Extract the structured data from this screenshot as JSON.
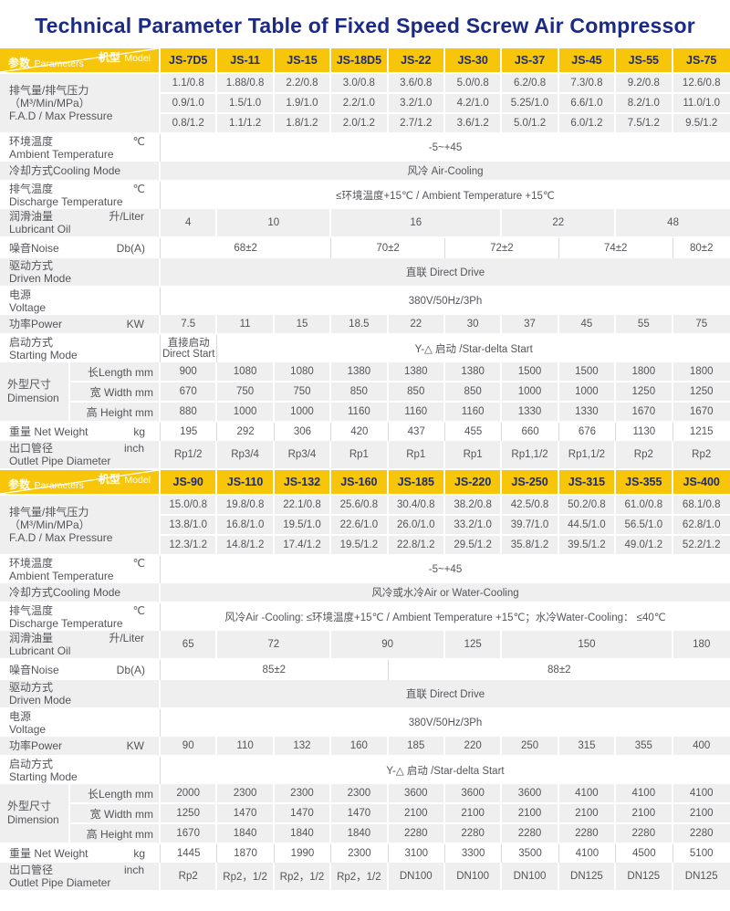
{
  "title": "Technical Parameter Table of  Fixed Speed Screw Air Compressor",
  "colors": {
    "header_bg": "#F7C50A",
    "header_text": "#1C2B72",
    "title": "#1A2A85",
    "row_gray": "#EFEFEF",
    "body_text": "#54555A",
    "light_line": "#D9D9D9"
  },
  "corner": {
    "model_cn": "机型",
    "model_en": "Model",
    "param_cn": "参数",
    "param_en": "Parameters"
  },
  "tables": [
    {
      "models": [
        "JS-7D5",
        "JS-11",
        "JS-15",
        "JS-18D5",
        "JS-22",
        "JS-30",
        "JS-37",
        "JS-45",
        "JS-55",
        "JS-75"
      ],
      "rows": [
        {
          "type": "group",
          "shade": "gray",
          "label_cn": "排气量/排气压力（M³/Min/MPa）",
          "label_en": "F.A.D / Max Pressure",
          "lines": [
            [
              "1.1/0.8",
              "1.88/0.8",
              "2.2/0.8",
              "3.0/0.8",
              "3.6/0.8",
              "5.0/0.8",
              "6.2/0.8",
              "7.3/0.8",
              "9.2/0.8",
              "12.6/0.8"
            ],
            [
              "0.9/1.0",
              "1.5/1.0",
              "1.9/1.0",
              "2.2/1.0",
              "3.2/1.0",
              "4.2/1.0",
              "5.25/1.0",
              "6.6/1.0",
              "8.2/1.0",
              "11.0/1.0"
            ],
            [
              "0.8/1.2",
              "1.1/1.2",
              "1.8/1.2",
              "2.0/1.2",
              "2.7/1.2",
              "3.6/1.2",
              "5.0/1.2",
              "6.0/1.2",
              "7.5/1.2",
              "9.5/1.2"
            ]
          ]
        },
        {
          "type": "row",
          "shade": "white",
          "label_cn": "环境温度",
          "label_en": "Ambient Temperature",
          "unit": "℃",
          "cells": [
            {
              "t": "-5~+45",
              "s": 10
            }
          ]
        },
        {
          "type": "row",
          "shade": "gray",
          "label_cn": "冷却方式Cooling Mode",
          "cells": [
            {
              "t": "风冷  Air-Cooling",
              "s": 10
            }
          ]
        },
        {
          "type": "row",
          "shade": "white",
          "label_cn": "排气温度",
          "label_en": "Discharge Temperature",
          "unit": "℃",
          "cells": [
            {
              "t": "≤环境温度+15℃ / Ambient Temperature  +15℃",
              "s": 10
            }
          ]
        },
        {
          "type": "row",
          "shade": "gray",
          "label_cn": "润滑油量",
          "label_en": "Lubricant Oil",
          "unit": "升/Liter",
          "cells": [
            {
              "t": "4",
              "s": 1
            },
            {
              "t": "10",
              "s": 2
            },
            {
              "t": "16",
              "s": 3
            },
            {
              "t": "22",
              "s": 2
            },
            {
              "t": "48",
              "s": 2
            }
          ]
        },
        {
          "type": "row",
          "shade": "white",
          "label_cn": "噪音Noise",
          "unit": "Db(A)",
          "cells": [
            {
              "t": "68±2",
              "s": 3
            },
            {
              "t": "70±2",
              "s": 2
            },
            {
              "t": "72±2",
              "s": 2
            },
            {
              "t": "74±2",
              "s": 2
            },
            {
              "t": "80±2",
              "s": 1
            }
          ]
        },
        {
          "type": "row",
          "shade": "gray",
          "label_cn": "驱动方式",
          "label_en": "Driven Mode",
          "cells": [
            {
              "t": "直联 Direct Drive",
              "s": 10
            }
          ]
        },
        {
          "type": "row",
          "shade": "white",
          "label_cn": "电源",
          "label_en": "Voltage",
          "cells": [
            {
              "t": "380V/50Hz/3Ph",
              "s": 10
            }
          ]
        },
        {
          "type": "row",
          "shade": "gray",
          "label_cn": "功率Power",
          "unit": "KW",
          "cells": [
            {
              "t": "7.5",
              "s": 1
            },
            {
              "t": "11",
              "s": 1
            },
            {
              "t": "15",
              "s": 1
            },
            {
              "t": "18.5",
              "s": 1
            },
            {
              "t": "22",
              "s": 1
            },
            {
              "t": "30",
              "s": 1
            },
            {
              "t": "37",
              "s": 1
            },
            {
              "t": "45",
              "s": 1
            },
            {
              "t": "55",
              "s": 1
            },
            {
              "t": "75",
              "s": 1
            }
          ]
        },
        {
          "type": "row",
          "shade": "white",
          "label_cn": "启动方式",
          "label_en": "Starting Mode",
          "cells": [
            {
              "t": "直接启动\nDirect Start",
              "s": 1
            },
            {
              "t": "Y-△ 启动 /Star-delta Start",
              "s": 9
            }
          ]
        },
        {
          "type": "dim",
          "shade": "gray",
          "label_cn": "外型尺寸",
          "label_en": "Dimension",
          "subs": [
            {
              "label": "长Length mm",
              "values": [
                "900",
                "1080",
                "1080",
                "1380",
                "1380",
                "1380",
                "1500",
                "1500",
                "1800",
                "1800"
              ]
            },
            {
              "label": "宽 Width  mm",
              "values": [
                "670",
                "750",
                "750",
                "850",
                "850",
                "850",
                "1000",
                "1000",
                "1250",
                "1250"
              ]
            },
            {
              "label": "高 Height mm",
              "values": [
                "880",
                "1000",
                "1000",
                "1160",
                "1160",
                "1160",
                "1330",
                "1330",
                "1670",
                "1670"
              ]
            }
          ]
        },
        {
          "type": "row",
          "shade": "white",
          "label_cn": "重量 Net Weight",
          "unit": "kg",
          "cells": [
            {
              "t": "195",
              "s": 1
            },
            {
              "t": "292",
              "s": 1
            },
            {
              "t": "306",
              "s": 1
            },
            {
              "t": "420",
              "s": 1
            },
            {
              "t": "437",
              "s": 1
            },
            {
              "t": "455",
              "s": 1
            },
            {
              "t": "660",
              "s": 1
            },
            {
              "t": "676",
              "s": 1
            },
            {
              "t": "1130",
              "s": 1
            },
            {
              "t": "1215",
              "s": 1
            }
          ]
        },
        {
          "type": "row",
          "shade": "gray",
          "label_cn": "出口管径",
          "label_en": "Outlet Pipe Diameter",
          "unit": "inch",
          "cells": [
            {
              "t": "Rp1/2",
              "s": 1
            },
            {
              "t": "Rp3/4",
              "s": 1
            },
            {
              "t": "Rp3/4",
              "s": 1
            },
            {
              "t": "Rp1",
              "s": 1
            },
            {
              "t": "Rp1",
              "s": 1
            },
            {
              "t": "Rp1",
              "s": 1
            },
            {
              "t": "Rp1,1/2",
              "s": 1
            },
            {
              "t": "Rp1,1/2",
              "s": 1
            },
            {
              "t": "Rp2",
              "s": 1
            },
            {
              "t": "Rp2",
              "s": 1
            }
          ]
        }
      ]
    },
    {
      "models": [
        "JS-90",
        "JS-110",
        "JS-132",
        "JS-160",
        "JS-185",
        "JS-220",
        "JS-250",
        "JS-315",
        "JS-355",
        "JS-400"
      ],
      "rows": [
        {
          "type": "group",
          "shade": "gray",
          "label_cn": "排气量/排气压力（M³/Min/MPa）",
          "label_en": "F.A.D / Max Pressure",
          "lines": [
            [
              "15.0/0.8",
              "19.8/0.8",
              "22.1/0.8",
              "25.6/0.8",
              "30.4/0.8",
              "38.2/0.8",
              "42.5/0.8",
              "50.2/0.8",
              "61.0/0.8",
              "68.1/0.8"
            ],
            [
              "13.8/1.0",
              "16.8/1.0",
              "19.5/1.0",
              "22.6/1.0",
              "26.0/1.0",
              "33.2/1.0",
              "39.7/1.0",
              "44.5/1.0",
              "56.5/1.0",
              "62.8/1.0"
            ],
            [
              "12.3/1.2",
              "14.8/1.2",
              "17.4/1.2",
              "19.5/1.2",
              "22.8/1.2",
              "29.5/1.2",
              "35.8/1.2",
              "39.5/1.2",
              "49.0/1.2",
              "52.2/1.2"
            ]
          ]
        },
        {
          "type": "row",
          "shade": "white",
          "label_cn": "环境温度",
          "label_en": "Ambient Temperature",
          "unit": "℃",
          "cells": [
            {
              "t": "-5~+45",
              "s": 10
            }
          ]
        },
        {
          "type": "row",
          "shade": "gray",
          "label_cn": "冷却方式Cooling Mode",
          "cells": [
            {
              "t": "风冷或水冷Air or Water-Cooling",
              "s": 10
            }
          ]
        },
        {
          "type": "row",
          "shade": "white",
          "label_cn": "排气温度",
          "label_en": "Discharge Temperature",
          "unit": "℃",
          "cells": [
            {
              "t": "风冷Air -Cooling: ≤环境温度+15℃ / Ambient Temperature  +15℃；水冷Water-Cooling： ≤40℃",
              "s": 10
            }
          ]
        },
        {
          "type": "row",
          "shade": "gray",
          "label_cn": "润滑油量",
          "label_en": "Lubricant Oil",
          "unit": "升/Liter",
          "cells": [
            {
              "t": "65",
              "s": 1
            },
            {
              "t": "72",
              "s": 2
            },
            {
              "t": "90",
              "s": 2
            },
            {
              "t": "125",
              "s": 1
            },
            {
              "t": "150",
              "s": 3
            },
            {
              "t": "180",
              "s": 1
            }
          ]
        },
        {
          "type": "row",
          "shade": "white",
          "label_cn": "噪音Noise",
          "unit": "Db(A)",
          "cells": [
            {
              "t": "85±2",
              "s": 4
            },
            {
              "t": "88±2",
              "s": 6
            }
          ]
        },
        {
          "type": "row",
          "shade": "gray",
          "label_cn": "驱动方式",
          "label_en": "Driven Mode",
          "cells": [
            {
              "t": "直联 Direct Drive",
              "s": 10
            }
          ]
        },
        {
          "type": "row",
          "shade": "white",
          "label_cn": "电源",
          "label_en": "Voltage",
          "cells": [
            {
              "t": "380V/50Hz/3Ph",
              "s": 10
            }
          ]
        },
        {
          "type": "row",
          "shade": "gray",
          "label_cn": "功率Power",
          "unit": "KW",
          "cells": [
            {
              "t": "90",
              "s": 1
            },
            {
              "t": "110",
              "s": 1
            },
            {
              "t": "132",
              "s": 1
            },
            {
              "t": "160",
              "s": 1
            },
            {
              "t": "185",
              "s": 1
            },
            {
              "t": "220",
              "s": 1
            },
            {
              "t": "250",
              "s": 1
            },
            {
              "t": "315",
              "s": 1
            },
            {
              "t": "355",
              "s": 1
            },
            {
              "t": "400",
              "s": 1
            }
          ]
        },
        {
          "type": "row",
          "shade": "white",
          "label_cn": "启动方式",
          "label_en": "Starting Mode",
          "cells": [
            {
              "t": "Y-△ 启动 /Star-delta Start",
              "s": 10
            }
          ]
        },
        {
          "type": "dim",
          "shade": "gray",
          "label_cn": "外型尺寸",
          "label_en": "Dimension",
          "subs": [
            {
              "label": "长Length mm",
              "values": [
                "2000",
                "2300",
                "2300",
                "2300",
                "3600",
                "3600",
                "3600",
                "4100",
                "4100",
                "4100"
              ]
            },
            {
              "label": "宽 Width  mm",
              "values": [
                "1250",
                "1470",
                "1470",
                "1470",
                "2100",
                "2100",
                "2100",
                "2100",
                "2100",
                "2100"
              ]
            },
            {
              "label": "高 Height mm",
              "values": [
                "1670",
                "1840",
                "1840",
                "1840",
                "2280",
                "2280",
                "2280",
                "2280",
                "2280",
                "2280"
              ]
            }
          ]
        },
        {
          "type": "row",
          "shade": "white",
          "label_cn": "重量 Net Weight",
          "unit": "kg",
          "cells": [
            {
              "t": "1445",
              "s": 1
            },
            {
              "t": "1870",
              "s": 1
            },
            {
              "t": "1990",
              "s": 1
            },
            {
              "t": "2300",
              "s": 1
            },
            {
              "t": "3100",
              "s": 1
            },
            {
              "t": "3300",
              "s": 1
            },
            {
              "t": "3500",
              "s": 1
            },
            {
              "t": "4100",
              "s": 1
            },
            {
              "t": "4500",
              "s": 1
            },
            {
              "t": "5100",
              "s": 1
            }
          ]
        },
        {
          "type": "row",
          "shade": "gray",
          "label_cn": "出口管径",
          "label_en": "Outlet Pipe Diameter",
          "unit": "inch",
          "cells": [
            {
              "t": "Rp2",
              "s": 1
            },
            {
              "t": "Rp2，1/2",
              "s": 1
            },
            {
              "t": "Rp2，1/2",
              "s": 1
            },
            {
              "t": "Rp2，1/2",
              "s": 1
            },
            {
              "t": "DN100",
              "s": 1
            },
            {
              "t": "DN100",
              "s": 1
            },
            {
              "t": "DN100",
              "s": 1
            },
            {
              "t": "DN125",
              "s": 1
            },
            {
              "t": "DN125",
              "s": 1
            },
            {
              "t": "DN125",
              "s": 1
            }
          ]
        }
      ]
    }
  ]
}
